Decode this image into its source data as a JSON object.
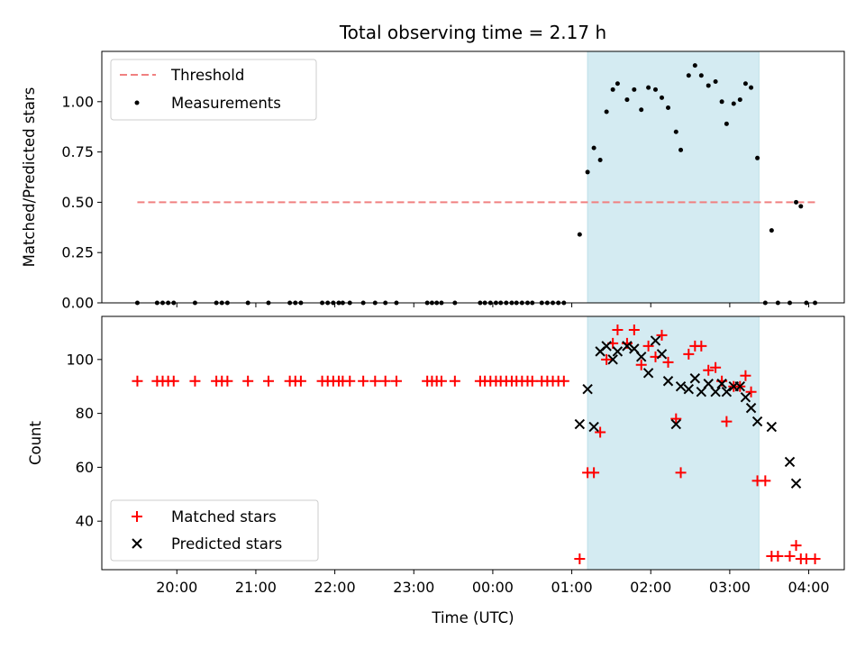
{
  "chart_data": [
    {
      "type": "scatter",
      "title": "Total observing time = 2.17 h",
      "ylabel": "Matched/Predicted stars",
      "xlabel": "",
      "x_unit": "hours relative to 00:00 UTC",
      "xlim": [
        -4.95,
        4.45
      ],
      "ylim": [
        0,
        1.25
      ],
      "yticks": [
        0.0,
        0.25,
        0.5,
        0.75,
        1.0
      ],
      "ytick_labels": [
        "0.00",
        "0.25",
        "0.50",
        "0.75",
        "1.00"
      ],
      "highlight_span": [
        1.2,
        3.37
      ],
      "highlight_color": "#d4ebf2",
      "legend": {
        "position": "top-left",
        "entries": [
          "Threshold",
          "Measurements"
        ]
      },
      "threshold": {
        "name": "Threshold",
        "y": 0.5,
        "x_start": -4.5,
        "x_end": 4.1,
        "color": "#f08080",
        "style": "dashed"
      },
      "series": [
        {
          "name": "Measurements",
          "color": "#000000",
          "marker": "dot",
          "x": [
            -4.5,
            -4.25,
            -4.18,
            -4.11,
            -4.04,
            -3.77,
            -3.5,
            -3.43,
            -3.36,
            -3.1,
            -2.84,
            -2.57,
            -2.5,
            -2.43,
            -2.16,
            -2.09,
            -2.02,
            -1.95,
            -1.9,
            -1.81,
            -1.64,
            -1.49,
            -1.36,
            -1.22,
            -0.83,
            -0.77,
            -0.71,
            -0.65,
            -0.48,
            -0.16,
            -0.1,
            -0.03,
            0.04,
            0.1,
            0.17,
            0.24,
            0.3,
            0.37,
            0.44,
            0.5,
            0.62,
            0.69,
            0.76,
            0.83,
            0.9,
            1.1,
            1.2,
            1.28,
            1.36,
            1.44,
            1.52,
            1.58,
            1.7,
            1.79,
            1.88,
            1.97,
            2.06,
            2.14,
            2.22,
            2.32,
            2.38,
            2.48,
            2.56,
            2.64,
            2.73,
            2.82,
            2.9,
            2.96,
            3.05,
            3.13,
            3.2,
            3.27,
            3.35,
            3.45,
            3.53,
            3.61,
            3.76,
            3.84,
            3.9,
            3.97,
            4.08
          ],
          "y": [
            0,
            0,
            0,
            0,
            0,
            0,
            0,
            0,
            0,
            0,
            0,
            0,
            0,
            0,
            0,
            0,
            0,
            0,
            0,
            0,
            0,
            0,
            0,
            0,
            0,
            0,
            0,
            0,
            0,
            0,
            0,
            0,
            0,
            0,
            0,
            0,
            0,
            0,
            0,
            0,
            0,
            0,
            0,
            0,
            0,
            0.34,
            0.65,
            0.77,
            0.71,
            0.95,
            1.06,
            1.09,
            1.01,
            1.06,
            0.96,
            1.07,
            1.06,
            1.02,
            0.97,
            0.85,
            0.76,
            1.13,
            1.18,
            1.13,
            1.08,
            1.1,
            1.0,
            0.89,
            0.99,
            1.01,
            1.09,
            1.07,
            0.72,
            0,
            0.36,
            0,
            0,
            0.5,
            0.48,
            0,
            0
          ]
        }
      ]
    },
    {
      "type": "scatter",
      "title": "",
      "ylabel": "Count",
      "xlabel": "Time (UTC)",
      "x_unit": "hours relative to 00:00 UTC",
      "xlim": [
        -4.95,
        4.45
      ],
      "ylim": [
        22,
        116
      ],
      "yticks": [
        40,
        60,
        80,
        100
      ],
      "ytick_labels": [
        "40",
        "60",
        "80",
        "100"
      ],
      "xticks": [
        -4,
        -3,
        -2,
        -1,
        0,
        1,
        2,
        3,
        4
      ],
      "xtick_labels": [
        "20:00",
        "21:00",
        "22:00",
        "23:00",
        "00:00",
        "01:00",
        "02:00",
        "03:00",
        "04:00"
      ],
      "highlight_span": [
        1.2,
        3.37
      ],
      "highlight_color": "#d4ebf2",
      "legend": {
        "position": "bottom-left",
        "entries": [
          "Matched stars",
          "Predicted stars"
        ]
      },
      "series": [
        {
          "name": "Matched stars",
          "color": "#ff0000",
          "marker": "plus",
          "x": [
            -4.5,
            -4.25,
            -4.18,
            -4.11,
            -4.04,
            -3.77,
            -3.5,
            -3.43,
            -3.36,
            -3.1,
            -2.84,
            -2.57,
            -2.5,
            -2.43,
            -2.16,
            -2.09,
            -2.02,
            -1.95,
            -1.9,
            -1.81,
            -1.64,
            -1.49,
            -1.36,
            -1.22,
            -0.83,
            -0.77,
            -0.71,
            -0.65,
            -0.48,
            -0.16,
            -0.1,
            -0.03,
            0.04,
            0.1,
            0.17,
            0.24,
            0.3,
            0.37,
            0.44,
            0.5,
            0.62,
            0.69,
            0.76,
            0.83,
            0.9,
            1.1,
            1.2,
            1.28,
            1.36,
            1.44,
            1.52,
            1.58,
            1.7,
            1.79,
            1.88,
            1.97,
            2.06,
            2.14,
            2.22,
            2.32,
            2.38,
            2.48,
            2.56,
            2.64,
            2.73,
            2.82,
            2.9,
            2.96,
            3.05,
            3.13,
            3.2,
            3.27,
            3.35,
            3.45,
            3.53,
            3.61,
            3.76,
            3.84,
            3.9,
            3.97,
            4.08
          ],
          "y": [
            92,
            92,
            92,
            92,
            92,
            92,
            92,
            92,
            92,
            92,
            92,
            92,
            92,
            92,
            92,
            92,
            92,
            92,
            92,
            92,
            92,
            92,
            92,
            92,
            92,
            92,
            92,
            92,
            92,
            92,
            92,
            92,
            92,
            92,
            92,
            92,
            92,
            92,
            92,
            92,
            92,
            92,
            92,
            92,
            92,
            26,
            58,
            58,
            73,
            100,
            106,
            111,
            106,
            111,
            98,
            105,
            101,
            109,
            99,
            78,
            58,
            102,
            105,
            105,
            96,
            97,
            92,
            77,
            90,
            90,
            94,
            88,
            55,
            55,
            27,
            27,
            27,
            31,
            26,
            26,
            26
          ]
        },
        {
          "name": "Predicted stars",
          "color": "#000000",
          "marker": "x",
          "x": [
            1.1,
            1.2,
            1.28,
            1.36,
            1.44,
            1.52,
            1.58,
            1.7,
            1.79,
            1.88,
            1.97,
            2.06,
            2.14,
            2.22,
            2.32,
            2.38,
            2.48,
            2.56,
            2.64,
            2.73,
            2.82,
            2.9,
            2.96,
            3.05,
            3.13,
            3.2,
            3.27,
            3.35,
            3.53,
            3.76,
            3.84
          ],
          "y": [
            76,
            89,
            75,
            103,
            105,
            100,
            103,
            105,
            104,
            101,
            95,
            107,
            102,
            92,
            76,
            90,
            89,
            93,
            88,
            91,
            88,
            91,
            88,
            90,
            90,
            86,
            82,
            77,
            75,
            62,
            54
          ]
        }
      ]
    }
  ]
}
